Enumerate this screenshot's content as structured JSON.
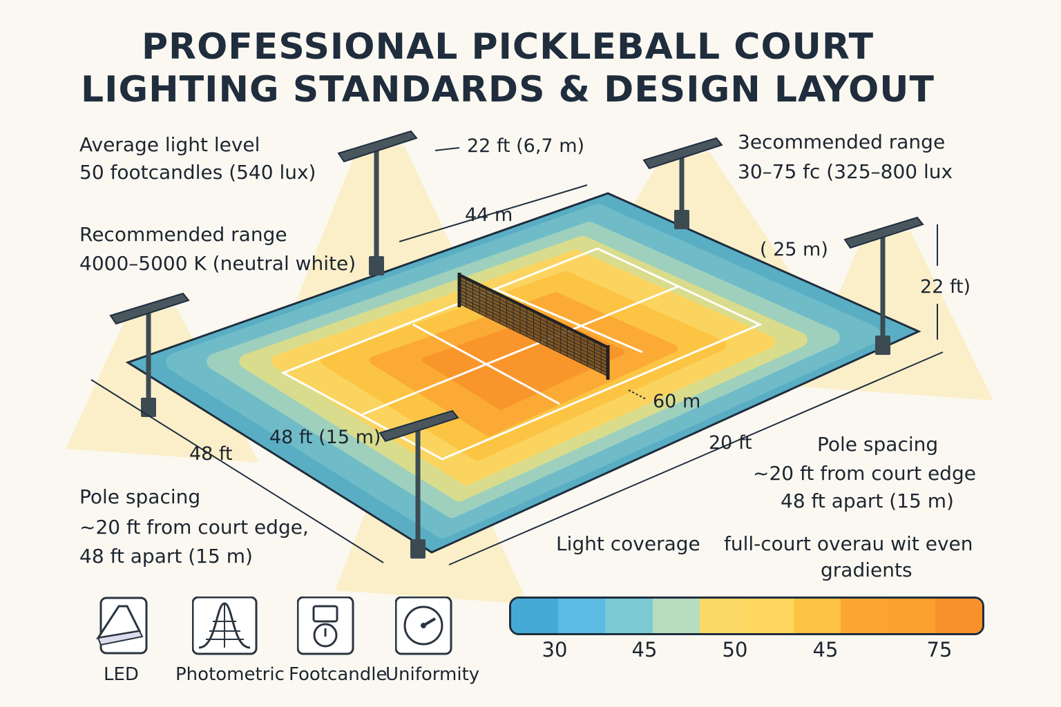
{
  "title": {
    "line1": "PROFESSIONAL PICKLEBALL COURT",
    "line2": "LIGHTING STANDARDS & DESIGN LAYOUT"
  },
  "top_left": {
    "heading": "Average light level",
    "value": "50 footcandles (540 lux)"
  },
  "mid_left": {
    "heading": "Recommended range",
    "value": "4000–5000 K (neutral white)"
  },
  "top_right": {
    "heading": "3ecommended range",
    "value": "30–75 fc (325–800 lux"
  },
  "bottom_left": {
    "heading": "Pole spacing",
    "line1": "~20 ft from court edge,",
    "line2": "48 ft apart (15 m)"
  },
  "bottom_right": {
    "heading": "Pole spacing",
    "line1": "~20 ft from court edge",
    "line2": "48 ft apart (15 m)"
  },
  "coverage": {
    "heading": "Light coverage",
    "line1": "full-court overau wit even",
    "line2": "gradients"
  },
  "dimensions": {
    "pole_height_top": "22 ft (6,7 m)",
    "width_top": "44 m",
    "right_25m": "( 25 m)",
    "pole_height_right": "22 ft)",
    "left_48ft": "48 ft",
    "left_48ft_15m": "48 ft (15 m)",
    "right_60m": "60 m",
    "bottom_20ft": "20 ft"
  },
  "legend": {
    "colors": [
      "#45a9d6",
      "#5bbbe2",
      "#7ccbd2",
      "#b7dcc0",
      "#fcd866",
      "#fdd75e",
      "#fdc343",
      "#fca532",
      "#fca030",
      "#f9912a"
    ],
    "ticks": [
      "30",
      "45",
      "50",
      "45",
      "75"
    ]
  },
  "icons": [
    {
      "label": "LED",
      "icon": "led-fixture-icon"
    },
    {
      "label": "Photometric",
      "icon": "photometric-icon"
    },
    {
      "label": "Footcandle",
      "icon": "footcandle-meter-icon"
    },
    {
      "label": "Uniformity",
      "icon": "uniformity-gauge-icon"
    }
  ],
  "colors": {
    "text": "#1c2530",
    "court_outer": "#5aaec4",
    "court_hot": "#f8962c"
  }
}
